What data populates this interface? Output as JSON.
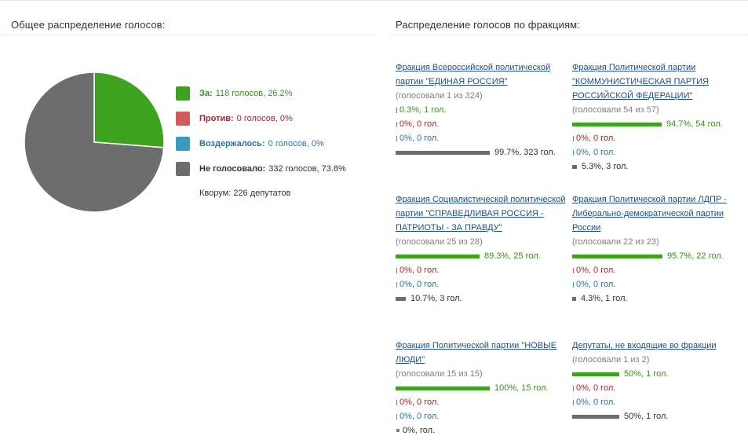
{
  "colors": {
    "za": "#3da31e",
    "protiv": "#d45a5a",
    "vozd": "#3a9bc0",
    "ne": "#6d6d6d",
    "link": "#1f4f84"
  },
  "overall": {
    "title": "Общее распределение голосов:",
    "legend": [
      {
        "key": "za",
        "label": "За:",
        "text": "118 голосов, 26.2%",
        "label_color": "#3d8d1c",
        "text_color": "#3d8d1c"
      },
      {
        "key": "protiv",
        "label": "Против:",
        "text": "0 голосов, 0%",
        "label_color": "#a3262e",
        "text_color": "#a3262e"
      },
      {
        "key": "vozd",
        "label": "Воздержалось:",
        "text": "0 голосов, 0%",
        "label_color": "#2d7299",
        "text_color": "#2d7299"
      },
      {
        "key": "ne",
        "label": "Не голосовало:",
        "text": "332 голосов, 73.8%",
        "label_color": "#333333",
        "text_color": "#333333"
      }
    ],
    "quorum": "Кворум: 226 депутатов"
  },
  "chart_data": {
    "type": "pie",
    "title": "Общее распределение голосов:",
    "categories": [
      "За",
      "Против",
      "Воздержалось",
      "Не голосовало"
    ],
    "values": [
      118,
      0,
      0,
      332
    ],
    "percent": [
      26.2,
      0,
      0,
      73.8
    ],
    "colors": [
      "#3da31e",
      "#d45a5a",
      "#3a9bc0",
      "#6d6d6d"
    ]
  },
  "factions_title": "Распределение голосов по фракциям:",
  "factions": [
    {
      "name": "Фракция Всероссийской политической партии \"ЕДИНАЯ РОССИЯ\"",
      "voted": "(голосовали 1 из 324)",
      "rows": [
        {
          "kind": "za",
          "frac": 0.003,
          "text": "0.3%, 1 гол."
        },
        {
          "kind": "protiv",
          "frac": 0,
          "text": "0%, 0 гол."
        },
        {
          "kind": "vozd",
          "frac": 0,
          "text": "0%, 0 гол."
        },
        {
          "kind": "ne",
          "frac": 0.997,
          "text": "99.7%, 323 гол."
        }
      ]
    },
    {
      "name": "Фракция Политической партии \"КОММУНИСТИЧЕСКАЯ ПАРТИЯ РОССИЙСКОЙ ФЕДЕРАЦИИ\"",
      "voted": "(голосовали 54 из 57)",
      "rows": [
        {
          "kind": "za",
          "frac": 0.947,
          "text": "94.7%, 54 гол."
        },
        {
          "kind": "protiv",
          "frac": 0,
          "text": "0%, 0 гол."
        },
        {
          "kind": "vozd",
          "frac": 0,
          "text": "0%, 0 гол."
        },
        {
          "kind": "ne",
          "frac": 0.053,
          "text": "5.3%, 3 гол."
        }
      ]
    },
    {
      "name": "Фракция Социалистической политической партии \"СПРАВЕДЛИВАЯ РОССИЯ - ПАТРИОТЫ - ЗА ПРАВДУ\"",
      "voted": "(голосовали 25 из 28)",
      "rows": [
        {
          "kind": "za",
          "frac": 0.893,
          "text": "89.3%, 25 гол."
        },
        {
          "kind": "protiv",
          "frac": 0,
          "text": "0%, 0 гол."
        },
        {
          "kind": "vozd",
          "frac": 0,
          "text": "0%, 0 гол."
        },
        {
          "kind": "ne",
          "frac": 0.107,
          "text": "10.7%, 3 гол."
        }
      ]
    },
    {
      "name": "Фракция Политической партии ЛДПР - Либерально-демократической партии России",
      "voted": "(голосовали 22 из 23)",
      "rows": [
        {
          "kind": "za",
          "frac": 0.957,
          "text": "95.7%, 22 гол."
        },
        {
          "kind": "protiv",
          "frac": 0,
          "text": "0%, 0 гол."
        },
        {
          "kind": "vozd",
          "frac": 0,
          "text": "0%, 0 гол."
        },
        {
          "kind": "ne",
          "frac": 0.043,
          "text": "4.3%, 1 гол."
        }
      ]
    },
    {
      "name": "Фракция Политической партии \"НОВЫЕ ЛЮДИ\"",
      "voted": "(голосовали 15 из 15)",
      "rows": [
        {
          "kind": "za",
          "frac": 1.0,
          "text": "100%, 15 гол."
        },
        {
          "kind": "protiv",
          "frac": 0,
          "text": "0%, 0 гол."
        },
        {
          "kind": "vozd",
          "frac": 0,
          "text": "0%, 0 гол."
        },
        {
          "kind": "ne",
          "frac": 0,
          "text": "0%, гол."
        }
      ]
    },
    {
      "name": "Депутаты, не входящие во фракции",
      "voted": "(голосовали 1 из 2)",
      "rows": [
        {
          "kind": "za",
          "frac": 0.5,
          "text": "50%, 1 гол."
        },
        {
          "kind": "protiv",
          "frac": 0,
          "text": "0%, 0 гол."
        },
        {
          "kind": "vozd",
          "frac": 0,
          "text": "0%, 0 гол."
        },
        {
          "kind": "ne",
          "frac": 0.5,
          "text": "50%, 1 гол."
        }
      ]
    }
  ]
}
